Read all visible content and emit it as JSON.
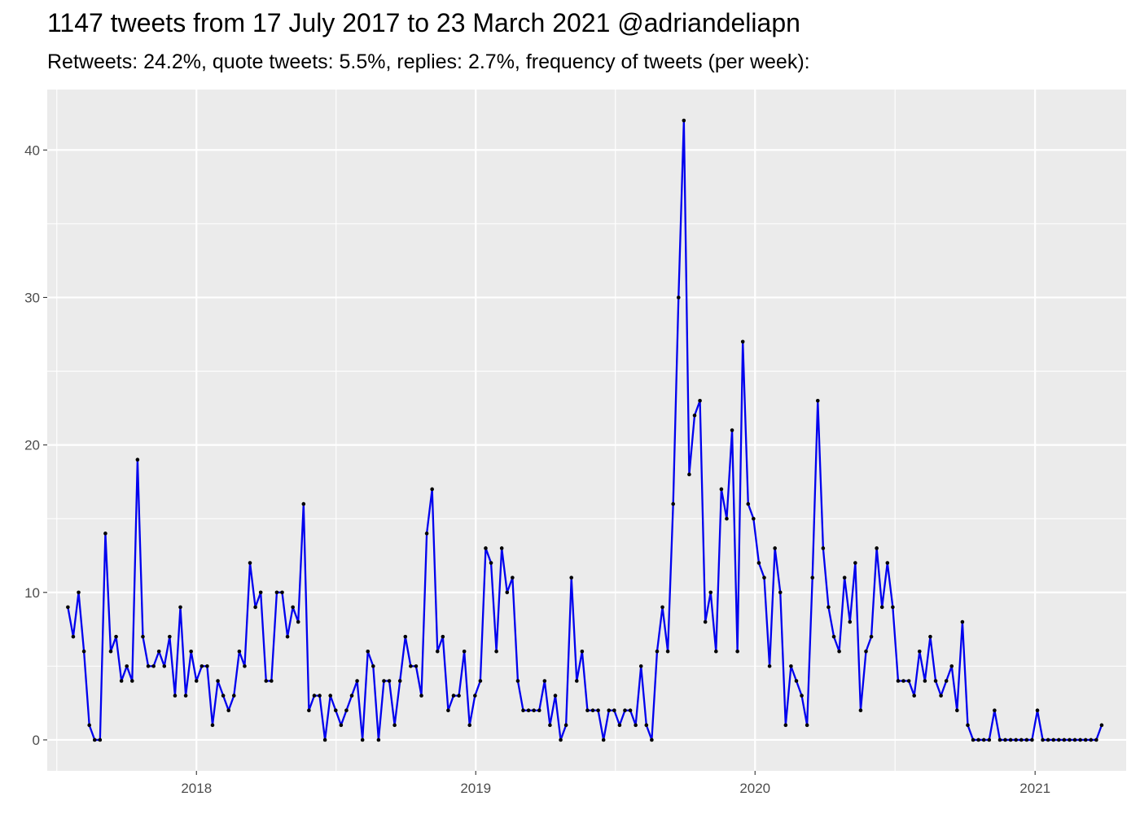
{
  "title": "1147 tweets from 17 July 2017 to 23 March 2021 @adriandeliapn",
  "subtitle": "Retweets: 24.2%, quote tweets: 5.5%, replies: 2.7%, frequency of tweets (per week):",
  "colors": {
    "line": "#0000ee",
    "point": "#000000",
    "panel": "#ebebeb",
    "grid": "#ffffff",
    "axis_text": "#4d4d4d"
  },
  "chart_data": {
    "type": "line",
    "title": "1147 tweets from 17 July 2017 to 23 March 2021 @adriandeliapn",
    "subtitle": "Retweets: 24.2%, quote tweets: 5.5%, replies: 2.7%, frequency of tweets (per week):",
    "xlabel": "",
    "ylabel": "",
    "grid": true,
    "legend": "none",
    "ylim": [
      -2.1,
      44.1
    ],
    "xlim": [
      "2017-06-20",
      "2021-04-30"
    ],
    "x_ticks": [
      {
        "label": "2018",
        "date": "2018-01-01"
      },
      {
        "label": "2019",
        "date": "2019-01-01"
      },
      {
        "label": "2020",
        "date": "2020-01-01"
      },
      {
        "label": "2021",
        "date": "2021-01-01"
      }
    ],
    "y_ticks": [
      0,
      10,
      20,
      30,
      40
    ],
    "series": [
      {
        "start": "2017-07-17",
        "interval": "week",
        "values": [
          9,
          7,
          10,
          6,
          1,
          0,
          0,
          14,
          6,
          7,
          4,
          5,
          4,
          19,
          7,
          5,
          5,
          6,
          5,
          7,
          3,
          9,
          3,
          6,
          4,
          5,
          5,
          1,
          4,
          3,
          2,
          3,
          6,
          5,
          12,
          9,
          10,
          4,
          4,
          10,
          10,
          7,
          9,
          8,
          16,
          2,
          3,
          3,
          0,
          3,
          2,
          1,
          2,
          3,
          4,
          0,
          6,
          5,
          0,
          4,
          4,
          1,
          4,
          7,
          5,
          5,
          3,
          14,
          17,
          6,
          7,
          2,
          3,
          3,
          6,
          1,
          3,
          4,
          13,
          12,
          6,
          13,
          10,
          11,
          4,
          2,
          2,
          2,
          2,
          4,
          1,
          3,
          0,
          1,
          11,
          4,
          6,
          2,
          2,
          2,
          0,
          2,
          2,
          1,
          2,
          2,
          1,
          5,
          1,
          0,
          6,
          9,
          6,
          16,
          30,
          42,
          18,
          22,
          23,
          8,
          10,
          6,
          17,
          15,
          21,
          6,
          27,
          16,
          15,
          12,
          11,
          5,
          13,
          10,
          1,
          5,
          4,
          3,
          1,
          11,
          23,
          13,
          9,
          7,
          6,
          11,
          8,
          12,
          2,
          6,
          7,
          13,
          9,
          12,
          9,
          4,
          4,
          4,
          3,
          6,
          4,
          7,
          4,
          3,
          4,
          5,
          2,
          8,
          1,
          0,
          0,
          0,
          0,
          2,
          0,
          0,
          0,
          0,
          0,
          0,
          0,
          2,
          0,
          0,
          0,
          0,
          0,
          0,
          0,
          0,
          0,
          0,
          0,
          1
        ]
      }
    ]
  }
}
